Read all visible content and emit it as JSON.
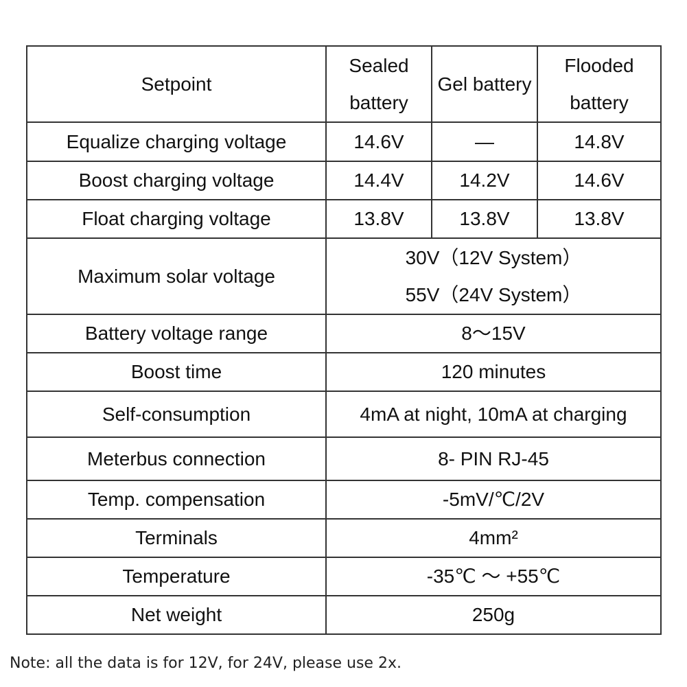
{
  "table": {
    "header": [
      "Setpoint",
      "Sealed battery",
      "Gel battery",
      "Flooded battery"
    ],
    "rows": [
      {
        "label": "Equalize charging voltage",
        "values": [
          "14.6V",
          "—",
          "14.8V"
        ]
      },
      {
        "label": "Boost charging voltage",
        "values": [
          "14.4V",
          "14.2V",
          "14.6V"
        ]
      },
      {
        "label": "Float charging voltage",
        "values": [
          "13.8V",
          "13.8V",
          "13.8V"
        ]
      },
      {
        "label": "Maximum solar voltage",
        "values": [
          [
            "30V（12V System）",
            "55V（24V System）"
          ]
        ]
      },
      {
        "label": "Battery voltage range",
        "values": [
          "8～15V"
        ]
      },
      {
        "label": "Boost time",
        "values": [
          "120 minutes"
        ]
      },
      {
        "label": "Self-consumption",
        "values": [
          "4mA at night, 10mA at charging"
        ]
      },
      {
        "label": "Meterbus connection",
        "values": [
          "8- PIN RJ-45"
        ]
      },
      {
        "label": "Temp. compensation",
        "values": [
          "-5mV/℃/2V"
        ]
      },
      {
        "label": "Terminals",
        "values": [
          "4mm²"
        ]
      },
      {
        "label": "Temperature",
        "values": [
          "-35℃ ～ +55℃"
        ]
      },
      {
        "label": "Net weight",
        "values": [
          "250g"
        ]
      }
    ]
  },
  "note": "Note: all the data is for 12V, for 24V, please use 2x."
}
